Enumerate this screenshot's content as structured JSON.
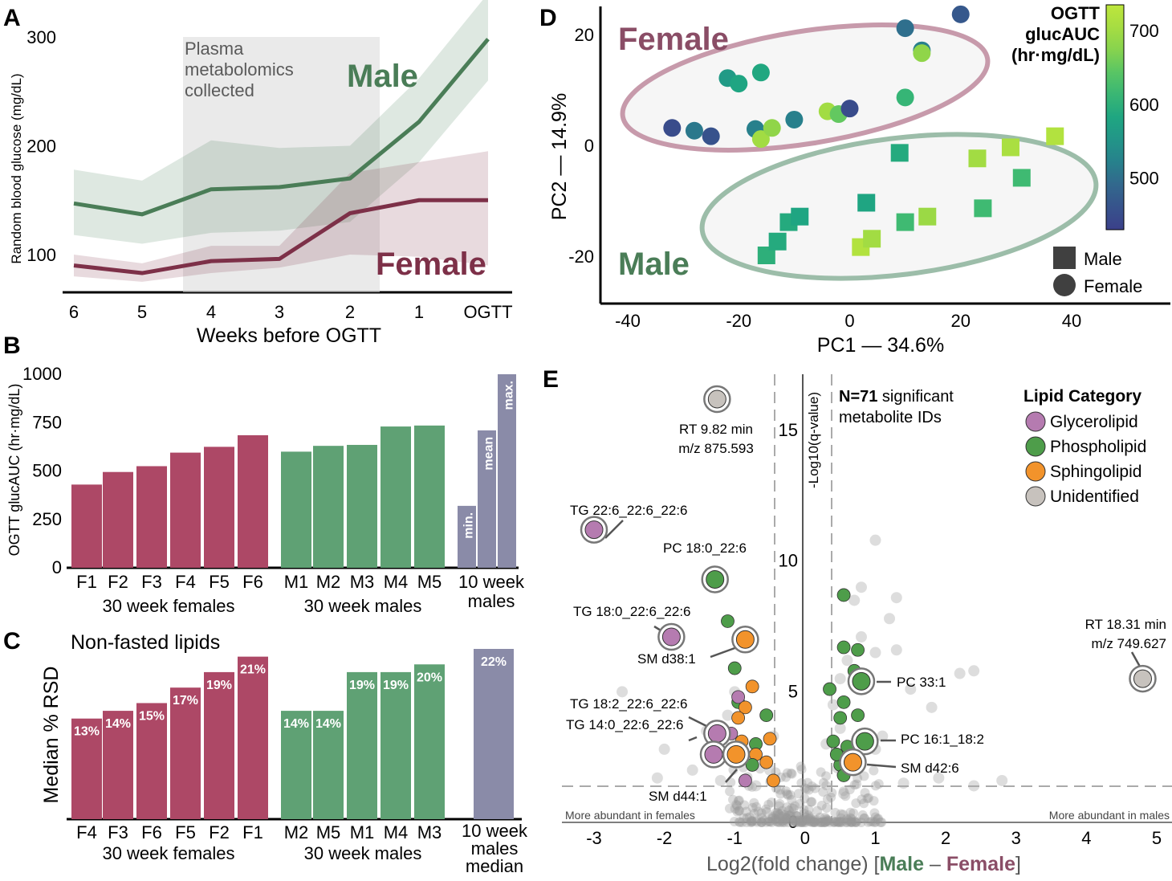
{
  "colors": {
    "male": "#4a7d57",
    "female": "#7d3048",
    "male_bar": "#5fa174",
    "female_bar": "#ad4866",
    "young_bar": "#8a8ba8",
    "glycerolipid": "#b57bb0",
    "phospholipid": "#4e9d4a",
    "sphingolipid": "#f2932b",
    "unidentified": "#c7c2bd",
    "male_ellipse": "#9cbda9",
    "female_ellipse": "#c79aab"
  },
  "panels": {
    "A": "A",
    "B": "B",
    "C": "C",
    "D": "D",
    "E": "E"
  },
  "chart_data": [
    {
      "id": "A",
      "type": "line",
      "x": [
        "6",
        "5",
        "4",
        "3",
        "2",
        "1",
        "OGTT"
      ],
      "xlabel": "Weeks before OGTT",
      "ylabel": "Random blood glucose (mg/dL)",
      "yticks": [
        100,
        200,
        300
      ],
      "ylim": [
        75,
        325
      ],
      "shaded_label_lines": [
        "Plasma",
        "metabolomics",
        "collected"
      ],
      "shaded_range": [
        "4.5",
        "1.6"
      ],
      "series": [
        {
          "name": "Male",
          "values": [
            147,
            137,
            160,
            162,
            170,
            222,
            298
          ],
          "lower": [
            118,
            110,
            120,
            122,
            130,
            185,
            260
          ],
          "upper": [
            178,
            168,
            205,
            198,
            200,
            262,
            340
          ]
        },
        {
          "name": "Female",
          "values": [
            90,
            83,
            94,
            96,
            138,
            150,
            150
          ],
          "lower": [
            80,
            75,
            83,
            88,
            100,
            98,
            90
          ],
          "upper": [
            100,
            92,
            108,
            108,
            175,
            185,
            195
          ]
        }
      ]
    },
    {
      "id": "B",
      "type": "bar",
      "ylabel": "OGTT glucAUC (hr·mg/dL)",
      "yticks": [
        0,
        250,
        500,
        750,
        1000
      ],
      "ylim": [
        0,
        1000
      ],
      "groups": [
        {
          "label": "30 week females",
          "categories": [
            "F1",
            "F2",
            "F3",
            "F4",
            "F5",
            "F6"
          ],
          "values": [
            430,
            495,
            525,
            595,
            625,
            685
          ]
        },
        {
          "label": "30 week males",
          "categories": [
            "M1",
            "M2",
            "M3",
            "M4",
            "M5"
          ],
          "values": [
            600,
            630,
            635,
            730,
            735
          ]
        },
        {
          "label_lines": [
            "10 week",
            "males"
          ],
          "categories": [
            "min.",
            "mean",
            "max."
          ],
          "values": [
            320,
            710,
            1000
          ]
        }
      ]
    },
    {
      "id": "C",
      "type": "bar",
      "title": "Non-fasted lipids",
      "ylabel": "Median % RSD",
      "groups": [
        {
          "label": "30 week females",
          "categories": [
            "F4",
            "F3",
            "F6",
            "F5",
            "F2",
            "F1"
          ],
          "values": [
            13,
            14,
            15,
            17,
            19,
            21
          ],
          "labels": [
            "13%",
            "14%",
            "15%",
            "17%",
            "19%",
            "21%"
          ]
        },
        {
          "label": "30 week males",
          "categories": [
            "M2",
            "M5",
            "M1",
            "M4",
            "M3"
          ],
          "values": [
            14,
            14,
            19,
            19,
            20
          ],
          "labels": [
            "14%",
            "14%",
            "19%",
            "19%",
            "20%"
          ]
        },
        {
          "label_lines": [
            "10 week",
            "males",
            "median"
          ],
          "categories": [
            ""
          ],
          "values": [
            22
          ],
          "labels": [
            "22%"
          ]
        }
      ]
    },
    {
      "id": "D",
      "type": "scatter",
      "xlabel": "PC1 — 34.6%",
      "ylabel": "PC2 — 14.9%",
      "xticks": [
        -40,
        -20,
        0,
        20,
        40
      ],
      "yticks": [
        -20,
        0,
        20
      ],
      "xlim": [
        -48,
        54
      ],
      "ylim": [
        -29,
        25
      ],
      "group_labels": [
        "Female",
        "Male"
      ],
      "colorbar": {
        "title_lines": [
          "OGTT",
          "glucAUC",
          "(hr·mg/dL)"
        ],
        "ticks": [
          500,
          600,
          700
        ],
        "range": [
          430,
          735
        ]
      },
      "legend": [
        "Male",
        "Female"
      ],
      "female_points": [
        [
          -32,
          3,
          450
        ],
        [
          -28,
          2.5,
          510
        ],
        [
          -25,
          1.5,
          460
        ],
        [
          -22,
          12,
          560
        ],
        [
          -20,
          11,
          580
        ],
        [
          -16,
          13,
          585
        ],
        [
          -17,
          2.8,
          520
        ],
        [
          -16,
          1,
          700
        ],
        [
          -14,
          3,
          680
        ],
        [
          -10,
          4.5,
          520
        ],
        [
          -4,
          6,
          700
        ],
        [
          -2,
          5.5,
          650
        ],
        [
          0,
          6.5,
          450
        ],
        [
          10,
          8.5,
          610
        ],
        [
          10,
          21,
          500
        ],
        [
          13,
          17,
          520
        ],
        [
          13,
          16.5,
          680
        ],
        [
          20,
          23.5,
          470
        ]
      ],
      "male_points": [
        [
          -15,
          -20,
          600
        ],
        [
          -13,
          -17.5,
          590
        ],
        [
          -11,
          -14,
          590
        ],
        [
          -9,
          -13,
          580
        ],
        [
          3,
          -10.5,
          580
        ],
        [
          9,
          -1.5,
          590
        ],
        [
          2,
          -18.5,
          720
        ],
        [
          4,
          -17,
          700
        ],
        [
          10,
          -14,
          620
        ],
        [
          14,
          -13,
          690
        ],
        [
          24,
          -11.5,
          620
        ],
        [
          23,
          -2.5,
          700
        ],
        [
          29,
          -0.5,
          710
        ],
        [
          31,
          -6,
          620
        ],
        [
          37,
          1.5,
          720
        ]
      ]
    },
    {
      "id": "E",
      "type": "scatter",
      "xlabel_parts": [
        "Log2(fold change)  [",
        "Male",
        " – ",
        "Female",
        "]"
      ],
      "ylabel": "-Log10(q-value)",
      "xticks": [
        -3,
        -2,
        -1,
        0,
        1,
        2,
        3,
        4,
        5
      ],
      "yticks": [
        0,
        5,
        10,
        15
      ],
      "xlim": [
        -3.4,
        5.3
      ],
      "ylim": [
        -0.2,
        16.8
      ],
      "annotation_bold": "N=71",
      "annotation_rest": " significant",
      "annotation_line2": "metabolite IDs",
      "side_label_left": "More abundant in females",
      "side_label_right": "More abundant in males",
      "legend_title": "Lipid Category",
      "legend": [
        "Glycerolipid",
        "Phospholipid",
        "Sphingolipid",
        "Unidentified"
      ],
      "labeled_points": [
        {
          "lines": [
            "RT 9.82 min",
            "m/z 875.593"
          ],
          "x": -1.25,
          "y": 16.2,
          "cat": "unidentified"
        },
        {
          "lines": [
            "TG 22:6_22:6_22:6"
          ],
          "x": -3.0,
          "y": 11.2,
          "cat": "glycerolipid"
        },
        {
          "lines": [
            "PC 18:0_22:6"
          ],
          "x": -1.28,
          "y": 9.3,
          "cat": "phospholipid"
        },
        {
          "lines": [
            "TG 18:0_22:6_22:6"
          ],
          "x": -1.9,
          "y": 7.1,
          "cat": "glycerolipid"
        },
        {
          "lines": [
            "SM d38:1"
          ],
          "x": -0.85,
          "y": 7.0,
          "cat": "sphingolipid"
        },
        {
          "lines": [
            "TG 18:2_22:6_22:6"
          ],
          "x": -1.25,
          "y": 3.4,
          "cat": "glycerolipid"
        },
        {
          "lines": [
            "TG 14:0_22:6_22:6"
          ],
          "x": -1.3,
          "y": 2.6,
          "cat": "glycerolipid"
        },
        {
          "lines": [
            "SM d44:1"
          ],
          "x": -0.98,
          "y": 2.6,
          "cat": "sphingolipid"
        },
        {
          "lines": [
            "PC 33:1"
          ],
          "x": 0.8,
          "y": 5.4,
          "cat": "phospholipid"
        },
        {
          "lines": [
            "PC 16:1_18:2"
          ],
          "x": 0.85,
          "y": 3.1,
          "cat": "phospholipid"
        },
        {
          "lines": [
            "SM d42:6"
          ],
          "x": 0.68,
          "y": 2.3,
          "cat": "sphingolipid"
        },
        {
          "lines": [
            "RT 18.31 min",
            "m/z 749.627"
          ],
          "x": 4.8,
          "y": 5.5,
          "cat": "unidentified"
        }
      ]
    }
  ]
}
